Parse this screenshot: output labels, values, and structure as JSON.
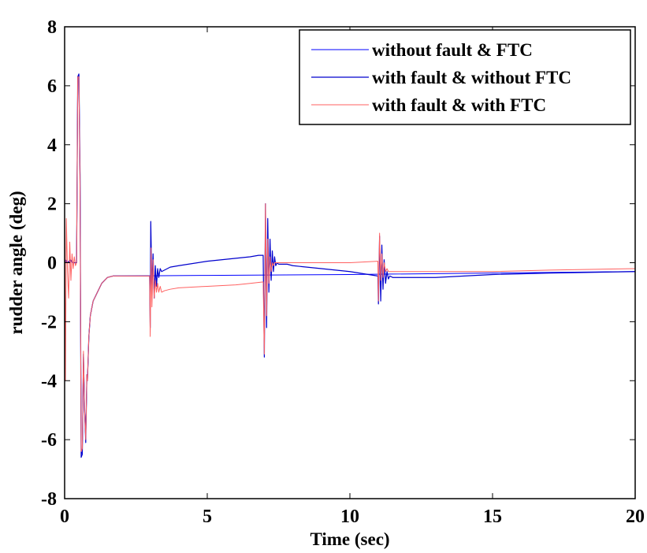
{
  "chart_data": {
    "type": "line",
    "title": "",
    "xlabel": "Time (sec)",
    "ylabel": "rudder angle (deg)",
    "xlim": [
      0,
      20
    ],
    "ylim": [
      -8,
      8
    ],
    "x_ticks": [
      0,
      5,
      10,
      15,
      20
    ],
    "y_ticks": [
      -8,
      -6,
      -4,
      -2,
      0,
      2,
      4,
      6,
      8
    ],
    "grid": false,
    "legend_position": "top-right",
    "series": [
      {
        "name": "without fault & FTC",
        "color": "#0000ff",
        "stroke_width": 1,
        "x": [
          0,
          0.05,
          0.1,
          0.2,
          0.3,
          0.42,
          0.46,
          0.5,
          0.54,
          0.58,
          0.62,
          0.66,
          0.7,
          0.74,
          0.78,
          0.8,
          0.85,
          0.9,
          1.0,
          1.1,
          1.2,
          1.3,
          1.5,
          1.7,
          2.0,
          5,
          10,
          15,
          20
        ],
        "y": [
          0,
          0.1,
          0,
          0.05,
          0,
          0,
          6.3,
          6.35,
          3,
          -6.5,
          -6.4,
          -3.2,
          -5,
          -6,
          -3.8,
          -4,
          -2.5,
          -1.8,
          -1.3,
          -1.1,
          -0.9,
          -0.7,
          -0.5,
          -0.45,
          -0.45,
          -0.43,
          -0.4,
          -0.35,
          -0.3
        ]
      },
      {
        "name": "with fault & without FTC",
        "color": "#0000cd",
        "stroke_width": 1.2,
        "x": [
          0,
          0.05,
          0.1,
          0.2,
          0.3,
          0.42,
          0.46,
          0.5,
          0.54,
          0.58,
          0.62,
          0.66,
          0.7,
          0.74,
          0.78,
          0.8,
          0.85,
          0.9,
          1.0,
          1.1,
          1.2,
          1.3,
          1.5,
          1.7,
          2.0,
          2.98,
          3.0,
          3.02,
          3.06,
          3.1,
          3.14,
          3.18,
          3.22,
          3.26,
          3.3,
          3.35,
          3.4,
          3.5,
          3.7,
          4.0,
          5.0,
          6.0,
          6.5,
          6.8,
          6.96,
          7.0,
          7.04,
          7.08,
          7.12,
          7.16,
          7.2,
          7.24,
          7.28,
          7.32,
          7.36,
          7.4,
          7.45,
          7.5,
          7.6,
          7.8,
          8.0,
          9.0,
          10.0,
          10.98,
          11.0,
          11.04,
          11.08,
          11.12,
          11.16,
          11.2,
          11.25,
          11.3,
          11.35,
          11.4,
          11.5,
          12,
          13,
          14,
          15,
          17,
          20
        ],
        "y": [
          0,
          0.05,
          0,
          0.1,
          0,
          0,
          6.3,
          6.4,
          3,
          -6.6,
          -6.5,
          -3.1,
          -5,
          -6.1,
          -3.8,
          -4,
          -2.5,
          -1.8,
          -1.3,
          -1.1,
          -0.9,
          -0.7,
          -0.5,
          -0.45,
          -0.45,
          -0.45,
          -2.2,
          1.4,
          -0.9,
          0.3,
          -1.2,
          -0.1,
          -0.8,
          -0.2,
          -0.5,
          -0.2,
          -0.3,
          -0.25,
          -0.15,
          -0.1,
          0.05,
          0.15,
          0.2,
          0.25,
          0.25,
          -3.2,
          2.0,
          -2.2,
          1.5,
          -1.0,
          0.8,
          -0.6,
          0.4,
          -0.3,
          0.2,
          -0.1,
          0,
          -0.05,
          -0.05,
          -0.05,
          -0.1,
          -0.2,
          -0.3,
          -0.45,
          -1.4,
          0.9,
          -1.3,
          0.6,
          -0.9,
          0.1,
          -0.7,
          -0.3,
          -0.55,
          -0.45,
          -0.5,
          -0.5,
          -0.5,
          -0.45,
          -0.4,
          -0.35,
          -0.3
        ]
      },
      {
        "name": "with fault & with FTC",
        "color": "#ff6060",
        "stroke_width": 1,
        "x": [
          0,
          0.03,
          0.06,
          0.1,
          0.14,
          0.18,
          0.22,
          0.26,
          0.3,
          0.34,
          0.38,
          0.42,
          0.46,
          0.5,
          0.54,
          0.58,
          0.62,
          0.66,
          0.7,
          0.74,
          0.78,
          0.8,
          0.85,
          0.9,
          1.0,
          1.1,
          1.2,
          1.3,
          1.5,
          1.7,
          2.0,
          2.98,
          3.0,
          3.03,
          3.06,
          3.1,
          3.14,
          3.18,
          3.22,
          3.26,
          3.3,
          3.35,
          3.4,
          3.5,
          3.7,
          4.0,
          5.0,
          6.0,
          6.5,
          6.96,
          7.0,
          7.04,
          7.08,
          7.12,
          7.16,
          7.2,
          7.24,
          7.28,
          7.32,
          7.36,
          7.4,
          7.5,
          7.6,
          7.8,
          8.0,
          9.0,
          10.0,
          10.98,
          11.0,
          11.04,
          11.08,
          11.12,
          11.16,
          11.2,
          11.25,
          11.3,
          11.35,
          11.4,
          11.5,
          12,
          13,
          14,
          15,
          17,
          20
        ],
        "y": [
          1.8,
          -4,
          1.5,
          -0.3,
          -1.2,
          0.7,
          -0.6,
          0.3,
          -0.2,
          0.2,
          -0.1,
          0,
          6.3,
          6.3,
          2.5,
          -6.4,
          -6.3,
          -3,
          -5,
          -6,
          -3.8,
          -4,
          -2.5,
          -1.8,
          -1.3,
          -1.1,
          -0.9,
          -0.7,
          -0.5,
          -0.45,
          -0.45,
          -0.45,
          -2.5,
          0.5,
          -1.5,
          0.1,
          -1.2,
          -0.6,
          -1.0,
          -0.7,
          -1.0,
          -0.8,
          -1.0,
          -0.95,
          -0.9,
          -0.85,
          -0.8,
          -0.75,
          -0.7,
          -0.65,
          -3.1,
          2.0,
          -1.8,
          0.8,
          -0.7,
          0.2,
          -0.3,
          0,
          -0.1,
          0,
          0,
          0,
          0,
          0,
          0,
          0,
          0,
          0.05,
          -1.3,
          1.0,
          -0.6,
          0.3,
          -0.5,
          0,
          -0.3,
          -0.2,
          -0.3,
          -0.3,
          -0.3,
          -0.3,
          -0.3,
          -0.3,
          -0.3,
          -0.25,
          -0.2
        ]
      }
    ]
  }
}
